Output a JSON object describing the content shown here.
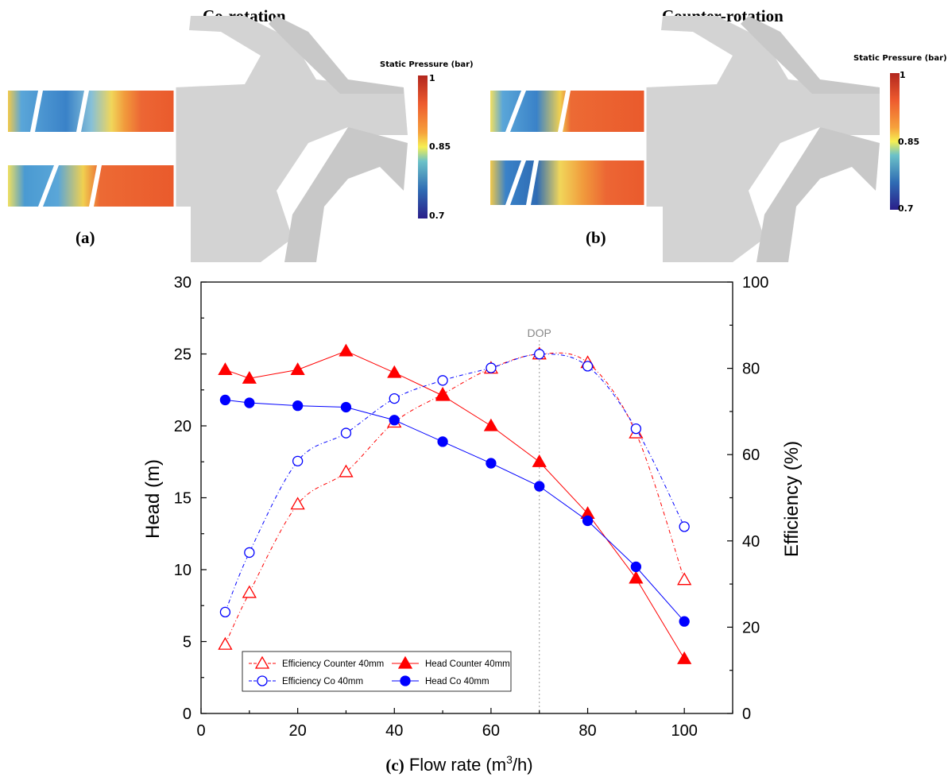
{
  "panel_a": {
    "title": "Co-rotation",
    "letter": "(a)",
    "colorbar": {
      "title": "Static Pressure (bar)",
      "max": "1",
      "mid": "0.85",
      "min": "0.7"
    }
  },
  "panel_b": {
    "title": "Counter-rotation",
    "letter": "(b)",
    "colorbar": {
      "title": "Static Pressure (bar)",
      "max": "1",
      "mid": "0.85",
      "min": "0.7"
    }
  },
  "colors": {
    "counter": "#ff0000",
    "co": "#0000ff",
    "casing": "#d3d3d3",
    "contour_low": "#2a55a8",
    "contour_mid": "#f4e04a",
    "contour_high": "#e8562e"
  },
  "chart_data": {
    "type": "line",
    "xlabel_prefix": "(c)",
    "xlabel": "Flow rate (m",
    "xlabel_sup": "3",
    "xlabel_suffix": "/h)",
    "ylabel_left": "Head (m)",
    "ylabel_right": "Efficiency (%)",
    "xlim": [
      0,
      110
    ],
    "ylim_left": [
      0,
      30
    ],
    "ylim_right": [
      0,
      100
    ],
    "xticks": [
      "0",
      "20",
      "40",
      "60",
      "80",
      "100"
    ],
    "yticks_left": [
      "0",
      "5",
      "10",
      "15",
      "20",
      "25",
      "30"
    ],
    "yticks_right": [
      "0",
      "20",
      "40",
      "60",
      "80",
      "100"
    ],
    "annotation": {
      "text": "DOP",
      "x": 70
    },
    "legend": "bottom-left",
    "series": [
      {
        "name": "Efficiency Counter 40mm",
        "axis": "right",
        "marker": "triangle-open",
        "color": "#ff0000",
        "dash": true,
        "x": [
          5,
          10,
          20,
          30,
          40,
          50,
          60,
          70,
          80,
          90,
          100
        ],
        "y": [
          16,
          28,
          48.5,
          56,
          67.5,
          74,
          80,
          83.3,
          81.3,
          65,
          31
        ]
      },
      {
        "name": "Head Counter 40mm",
        "axis": "left",
        "marker": "triangle-filled",
        "color": "#ff0000",
        "dash": false,
        "x": [
          5,
          10,
          20,
          30,
          40,
          50,
          60,
          70,
          80,
          90,
          100
        ],
        "y": [
          23.9,
          23.3,
          23.9,
          25.2,
          23.7,
          22.1,
          20.0,
          17.5,
          13.9,
          9.4,
          3.8
        ]
      },
      {
        "name": "Efficiency Co 40mm",
        "axis": "right",
        "marker": "circle-open",
        "color": "#0000ff",
        "dash": true,
        "x": [
          5,
          10,
          20,
          30,
          40,
          50,
          60,
          70,
          80,
          90,
          100
        ],
        "y": [
          23.5,
          37.3,
          58.5,
          65,
          73,
          77.2,
          80.1,
          83.3,
          80.5,
          66,
          43.3
        ]
      },
      {
        "name": "Head Co 40mm",
        "axis": "left",
        "marker": "circle-filled",
        "color": "#0000ff",
        "dash": false,
        "x": [
          5,
          10,
          20,
          30,
          40,
          50,
          60,
          70,
          80,
          90,
          100
        ],
        "y": [
          21.8,
          21.6,
          21.4,
          21.3,
          20.4,
          18.9,
          17.4,
          15.8,
          13.4,
          10.2,
          6.4
        ]
      }
    ]
  }
}
